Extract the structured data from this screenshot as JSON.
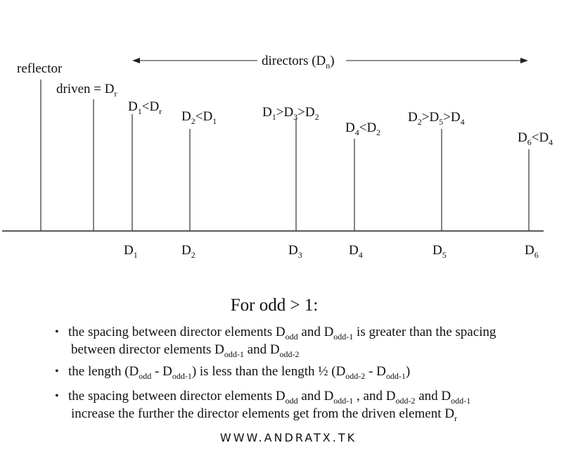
{
  "diagram": {
    "directors_label": [
      {
        "t": "directors (D"
      },
      {
        "t": "n",
        "sub": true
      },
      {
        "t": ")"
      }
    ],
    "reflector_label": [
      {
        "t": "reflector"
      }
    ],
    "driven_label": [
      {
        "t": "driven =  D"
      },
      {
        "t": "r",
        "sub": true
      }
    ],
    "element_relations": [
      [
        {
          "t": "D"
        },
        {
          "t": "1",
          "sub": true
        },
        {
          "t": "<D"
        },
        {
          "t": "r",
          "sub": true
        }
      ],
      [
        {
          "t": "D"
        },
        {
          "t": "2",
          "sub": true
        },
        {
          "t": "<D"
        },
        {
          "t": "1",
          "sub": true
        }
      ],
      [
        {
          "t": "D"
        },
        {
          "t": "1",
          "sub": true
        },
        {
          "t": ">D"
        },
        {
          "t": "3",
          "sub": true
        },
        {
          "t": ">D"
        },
        {
          "t": "2",
          "sub": true
        }
      ],
      [
        {
          "t": "D"
        },
        {
          "t": "4",
          "sub": true
        },
        {
          "t": "<D"
        },
        {
          "t": "2",
          "sub": true
        }
      ],
      [
        {
          "t": "D"
        },
        {
          "t": "2",
          "sub": true
        },
        {
          "t": ">D"
        },
        {
          "t": "5",
          "sub": true
        },
        {
          "t": ">D"
        },
        {
          "t": "4",
          "sub": true
        }
      ],
      [
        {
          "t": "D"
        },
        {
          "t": "6",
          "sub": true
        },
        {
          "t": "<D"
        },
        {
          "t": "4",
          "sub": true
        }
      ]
    ],
    "element_names": [
      [
        {
          "t": "D"
        },
        {
          "t": "1",
          "sub": true
        }
      ],
      [
        {
          "t": "D"
        },
        {
          "t": "2",
          "sub": true
        }
      ],
      [
        {
          "t": "D"
        },
        {
          "t": "3",
          "sub": true
        }
      ],
      [
        {
          "t": "D"
        },
        {
          "t": "4",
          "sub": true
        }
      ],
      [
        {
          "t": "D"
        },
        {
          "t": "5",
          "sub": true
        }
      ],
      [
        {
          "t": "D"
        },
        {
          "t": "6",
          "sub": true
        }
      ]
    ]
  },
  "notes": {
    "title": [
      {
        "t": "For odd > 1:"
      }
    ],
    "bullet_char": "•",
    "bullets": [
      [
        [
          {
            "t": "the spacing between director elements D"
          },
          {
            "t": "odd",
            "sub": true
          },
          {
            "t": " and D"
          },
          {
            "t": "odd-1",
            "sub": true
          },
          {
            "t": " is greater than the spacing"
          }
        ],
        [
          {
            "t": "between director elements D"
          },
          {
            "t": "odd-1",
            "sub": true
          },
          {
            "t": " and D"
          },
          {
            "t": "odd-2",
            "sub": true
          }
        ]
      ],
      [
        [
          {
            "t": "the length (D"
          },
          {
            "t": "odd",
            "sub": true
          },
          {
            "t": " - D"
          },
          {
            "t": "odd-1",
            "sub": true
          },
          {
            "t": ") is less than the length ½ (D"
          },
          {
            "t": "odd-2",
            "sub": true
          },
          {
            "t": " - D"
          },
          {
            "t": "odd-1",
            "sub": true
          },
          {
            "t": ")"
          }
        ]
      ],
      [
        [
          {
            "t": "the spacing between director elements D"
          },
          {
            "t": "odd",
            "sub": true
          },
          {
            "t": " and D"
          },
          {
            "t": "odd-1",
            "sub": true
          },
          {
            "t": " , and  D"
          },
          {
            "t": "odd-2",
            "sub": true
          },
          {
            "t": " and D"
          },
          {
            "t": "odd-1",
            "sub": true
          }
        ],
        [
          {
            "t": "increase the further the director elements get from the driven element D"
          },
          {
            "t": "r",
            "sub": true
          }
        ]
      ]
    ]
  },
  "footer": "WWW.ANDRATX.TK"
}
